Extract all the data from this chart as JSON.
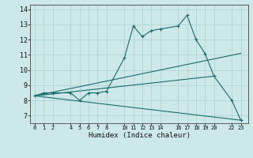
{
  "xlabel": "Humidex (Indice chaleur)",
  "bg_color": "#cde8e8",
  "grid_color": "#b0d4d4",
  "line_color": "#1a6b6b",
  "xlim": [
    -0.5,
    23.8
  ],
  "ylim": [
    6.5,
    14.3
  ],
  "xticks": [
    0,
    1,
    2,
    4,
    5,
    6,
    7,
    8,
    10,
    11,
    12,
    13,
    14,
    16,
    17,
    18,
    19,
    20,
    22,
    23
  ],
  "yticks": [
    7,
    8,
    9,
    10,
    11,
    12,
    13,
    14
  ],
  "series": [
    {
      "x": [
        0,
        1,
        2,
        4,
        5,
        6,
        7,
        8,
        10,
        11,
        12,
        13,
        14,
        16,
        17,
        18,
        19,
        20,
        22,
        23
      ],
      "y": [
        8.3,
        8.5,
        8.5,
        8.5,
        8.0,
        8.5,
        8.5,
        8.6,
        10.8,
        12.9,
        12.2,
        12.6,
        12.7,
        12.9,
        13.6,
        12.0,
        11.1,
        9.6,
        8.0,
        6.7
      ],
      "marker": true
    },
    {
      "x": [
        0,
        23
      ],
      "y": [
        8.3,
        6.7
      ],
      "marker": false
    },
    {
      "x": [
        0,
        23
      ],
      "y": [
        8.3,
        11.1
      ],
      "marker": false
    },
    {
      "x": [
        0,
        20
      ],
      "y": [
        8.3,
        9.6
      ],
      "marker": false
    }
  ]
}
